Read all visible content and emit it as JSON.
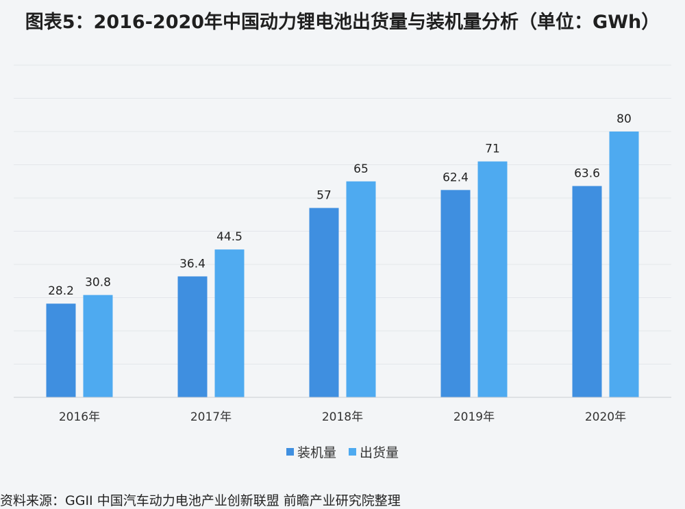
{
  "chart_data": {
    "type": "bar",
    "title": "图表5：2016-2020年中国动力锂电池出货量与装机量分析（单位：GWh）",
    "categories": [
      "2016年",
      "2017年",
      "2018年",
      "2019年",
      "2020年"
    ],
    "series": [
      {
        "name": "装机量",
        "values": [
          28.2,
          36.4,
          57,
          62.4,
          63.6
        ],
        "color": "#3f8fe0"
      },
      {
        "name": "出货量",
        "values": [
          30.8,
          44.5,
          65,
          71,
          80
        ],
        "color": "#4eaaf0"
      }
    ],
    "value_labels": [
      [
        "28.2",
        "36.4",
        "57",
        "62.4",
        "63.6"
      ],
      [
        "30.8",
        "44.5",
        "65",
        "71",
        "80"
      ]
    ],
    "ylim": [
      0,
      100
    ],
    "grid": true,
    "legend_position": "bottom"
  },
  "source_text": "资料来源：GGII 中国汽车动力电池产业创新联盟 前瞻产业研究院整理"
}
